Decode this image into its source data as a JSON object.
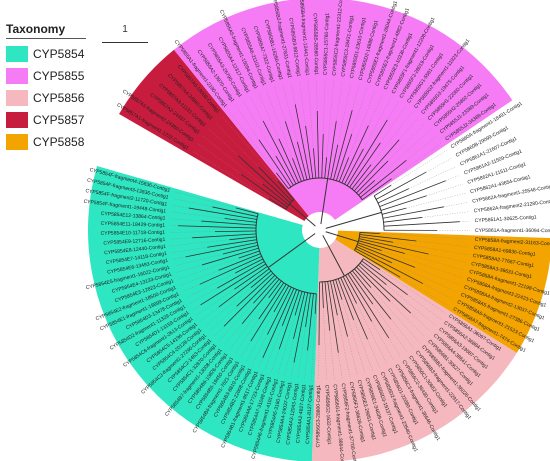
{
  "legend": {
    "title": "Taxonomy",
    "items": [
      {
        "label": "CYP5854",
        "color": "#2ee6c1"
      },
      {
        "label": "CYP5855",
        "color": "#f57cf5"
      },
      {
        "label": "CYP5856",
        "color": "#f6b8bf"
      },
      {
        "label": "CYP5857",
        "color": "#c81c3e"
      },
      {
        "label": "CYP5858",
        "color": "#f3a400"
      }
    ]
  },
  "scale_bar": {
    "label": "1"
  },
  "tree": {
    "clades": [
      {
        "taxon": "CYP5857",
        "color": "#c81c3e",
        "leaves": [
          "CYP5857A1-fragment1-1232-Contig1",
          "CYP5857A1-fragment2-24380-Contig1",
          "CYP5857A2-24497-Contig1",
          "CYP5857A3-21131-Contig1",
          "CYP5857A4-24840-Contig1",
          "CYP5857A5-19008-Contig1"
        ]
      },
      {
        "taxon": "CYP5855",
        "color": "#f57cf5",
        "leaves": [
          "CYP5855A1-fragment1-2190-Contig1",
          "CYP5855A2-13970-Contig1",
          "CYP5855A3-26790-Contig1",
          "CYP5855A4-12317-Contig1",
          "CYP5855A5-fragment1-15094-Contig1",
          "CYP5855A6-21102-Contig1",
          "CYP5855A7-7322-Contig1",
          "CYP5855B1-16280-Contig1",
          "CYP5855B2-fragment1-27831-Contig1",
          "CYP5855B3-9812-Contig1",
          "CYP5855B4-fragment1-12441-Contig1",
          "CYP5855B5-28560-Contig1",
          "CYP5855C1-15760-Contig1",
          "CYP5855C2-fragment1-22312-Contig1",
          "CYP5855C3-18431-Contig1",
          "CYP5855D1-23610-Contig1",
          "CYP5855D2-14988-Contig1",
          "CYP5855E1-fragment1-26044-Contig1",
          "CYP5855E2-fragment1-4882-Contig1",
          "CYP5855E3-10236-Contig1",
          "CYP5855F1-fragment1-12208-Contig1",
          "CYP5855F2-28019-Contig1",
          "CYP5855G1-5581-Contig1",
          "CYP5855G2-fragment1-11923-Contig1",
          "CYP5855G3-19475-Contig1",
          "CYP5855H1-22060-Contig1",
          "CYP5855H2-25802-Contig1",
          "CYP5855J1-23389-Contig1",
          "CYP5855J2-34388-Contig1"
        ]
      },
      {
        "taxon": "none",
        "color": "",
        "leaves": [
          "CYP5860A-fragment1-18491-Contig1",
          "CYP5860B-29099-Contig1",
          "CYP5861A1-21607-Contig1",
          "CYP5861A2-11509-Contig1",
          "CYP5862A1-11511-Contig1",
          "CYP5862A1-43654-Contig1",
          "CYP5862A-fragment1-25548-Contig1",
          "CYP5862A-fragment2-21280-Contig1",
          "CYP5861A1-30625-Contig1",
          "CYP5861A-fragment1-36094-Contig1"
        ]
      },
      {
        "taxon": "CYP5858",
        "color": "#f3a400",
        "leaves": [
          "CYP5858A-fragment2-31163-Contig1",
          "CYP5858A1-69836-Contig1",
          "CYP5858A2-77667-Contig1",
          "CYP5858A3-36631-Contig1",
          "CYP5858A-fragment1-22198-Contig1",
          "CYP5858A-fragment3-22423-Contig1",
          "CYP5858A4-fragment2-13037-Contig1",
          "CYP5858A5-fragment1-27386-Contig1",
          "CYP5858A6-fragment1-21523-Contig1",
          "CYP5858A7-fragment1-7474-Contig1"
        ]
      },
      {
        "taxon": "CYP5856",
        "color": "#f6b8bf",
        "leaves": [
          "CYP5856A1-36097-Contig1",
          "CYP5856A2-36884-Contig1",
          "CYP5856A3-19087-Contig1",
          "CYP5856A4-38641-Contig1",
          "CYP5856B1-30627-Contig1",
          "CYP5856B2-fragment1-36026-Contig1",
          "CYP5856B3-fragment1-22917-Contig1",
          "CYP5856C1-30662-Contig1",
          "CYP5856C2-36430-Contig1",
          "CYP5856C3-fragment1-36646-Contig1",
          "CYP5856D1-22080-Contig1",
          "CYP5856D2-fragment1-23540-Contig1",
          "CYP5856D3-19137-Contig1",
          "CYP5856E1-34639-Contig1",
          "CYP5856E2-29051-Contig1",
          "CYP5856F1-36628-Contig1",
          "CYP5856F2-fragment1-37700-Contig1",
          "CYP5856G1-fragment1-36644-Contig1",
          "CYP5856G2-1632-Contig1",
          "CYP5856G3-28800-Contig1"
        ]
      },
      {
        "taxon": "CYP5854",
        "color": "#2ee6c1",
        "leaves": [
          "CYP5854A1-8127-Contig1",
          "CYP5854A2-4827-Contig1",
          "CYP5854A3-12043-Contig1",
          "CYP5854A4-24037-Contig1",
          "CYP5854A5-3180-Contig1",
          "CYP5854A6-fragment1-4101-Contig1",
          "CYP5854A7-31048-Contig1",
          "CYP5854A8-17723-Contig1",
          "CYP5854B1-fragment1-9617-Contig1",
          "CYP5854B2-22608-Contig1",
          "CYP5854B3-8810-Contig1",
          "CYP5854B4-fragment1-7621-Contig1",
          "CYP5854B5-19450-Contig1",
          "CYP5854B6-10826-Contig1",
          "CYP5854B7-fragment1-13008-Contig1",
          "CYP5854C1-32870-Contig1",
          "CYP5854C2-1463-Contig1",
          "CYP5854C3-fragment1-27290-Contig1",
          "CYP5854C4-20128-Contig1",
          "CYP5854C5-14196-Contig1",
          "CYP5854C6-fragment1-2613-Contig1",
          "CYP5854D1-13159-Contig1",
          "CYP5854D2-fragment1-11329-Contig1",
          "CYP5854D3-13478-Contig1",
          "CYP5854E1-fragment1-19899-Contig1",
          "CYP5854E2-fragment1-18500-Contig1",
          "CYP5854E3-12823-Contig1",
          "CYP5854E4-13133-Contig1",
          "CYP5854E5-fragment1-16022-Contig1",
          "CYP5854E6-13493-Contig1",
          "CYP5854E7-14118-Contig1",
          "CYP5854E8-12440-Contig1",
          "CYP5854E9-12716-Contig1",
          "CYP5854E10-11718-Contig1",
          "CYP5854E11-18429-Contig1",
          "CYP5854E12-13864-Contig1",
          "CYP5854F-fragment1-19448-Contig1",
          "CYP5854F-fragment2-11720-Contig1",
          "CYP5854F-fragment3-13836-Contig1",
          "CYP5854F-fragment4-15836-Contig1"
        ]
      }
    ]
  }
}
